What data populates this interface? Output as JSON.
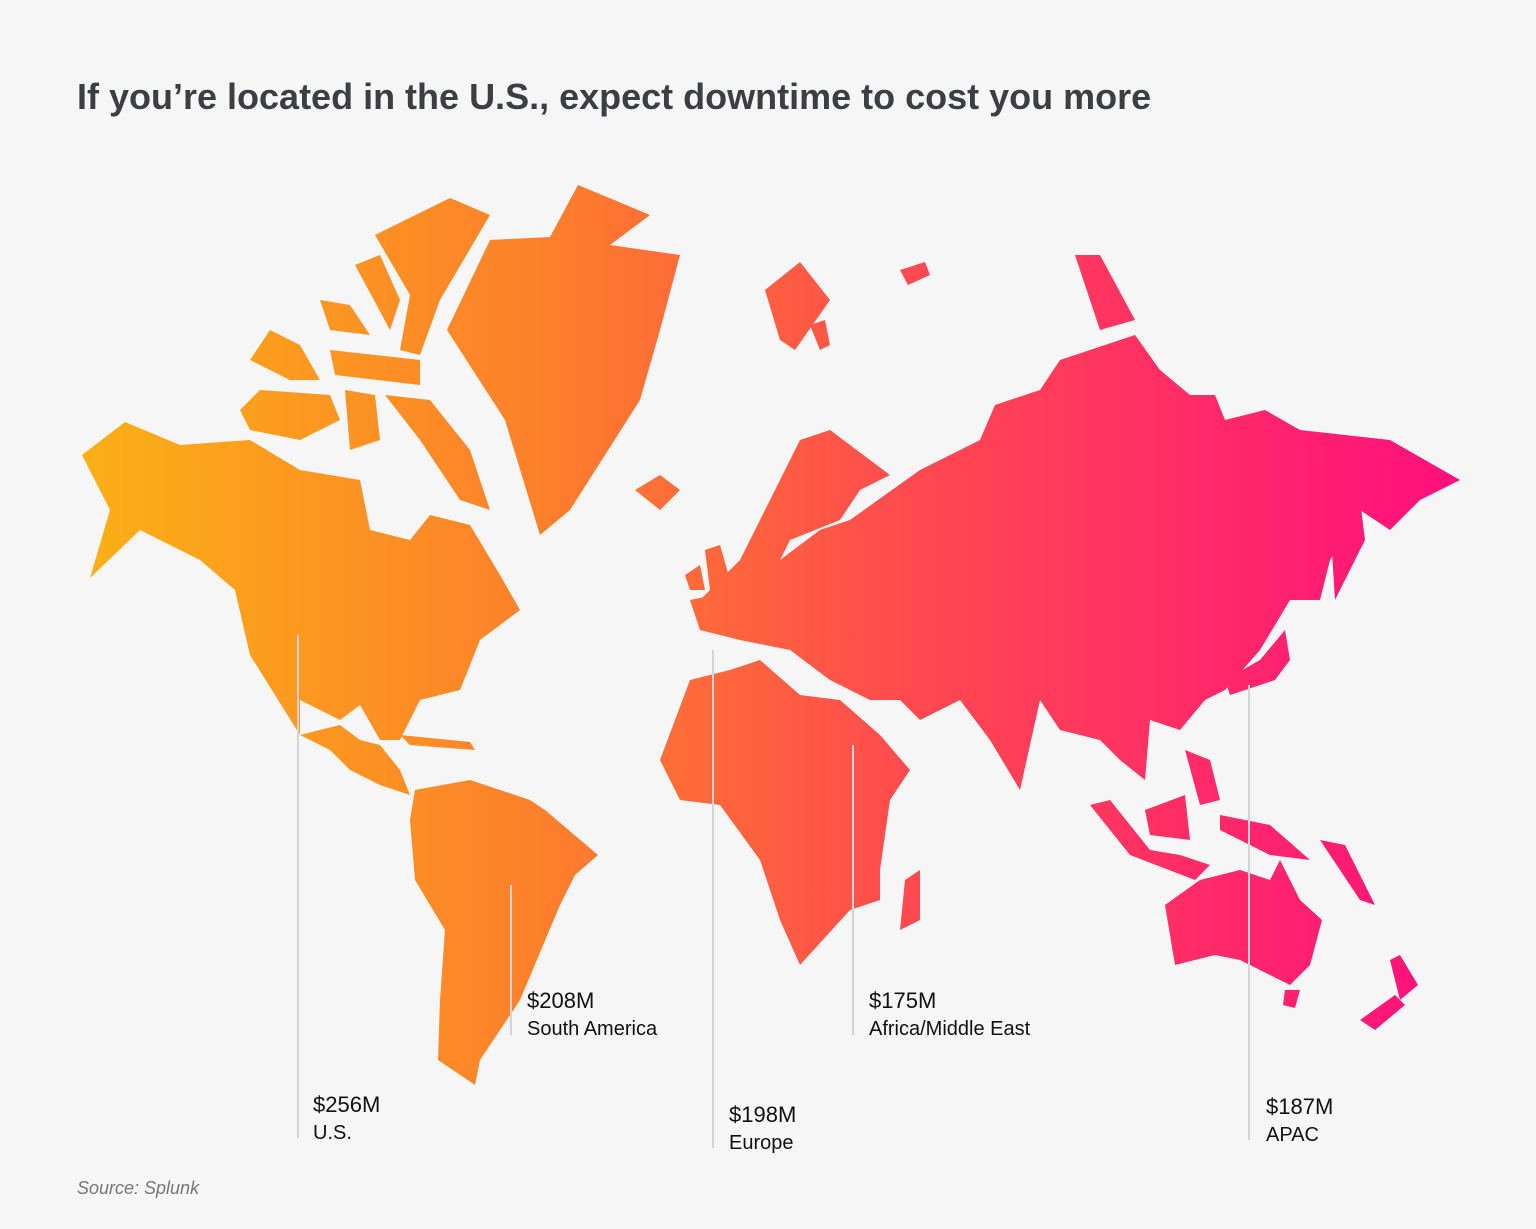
{
  "title": "If you’re located in the U.S., expect downtime to cost you more",
  "regions": [
    {
      "amount": "$256M",
      "name": "U.S."
    },
    {
      "amount": "$208M",
      "name": "South America"
    },
    {
      "amount": "$198M",
      "name": "Europe"
    },
    {
      "amount": "$175M",
      "name": "Africa/Middle East"
    },
    {
      "amount": "$187M",
      "name": "APAC"
    }
  ],
  "source": "Source: Splunk"
}
